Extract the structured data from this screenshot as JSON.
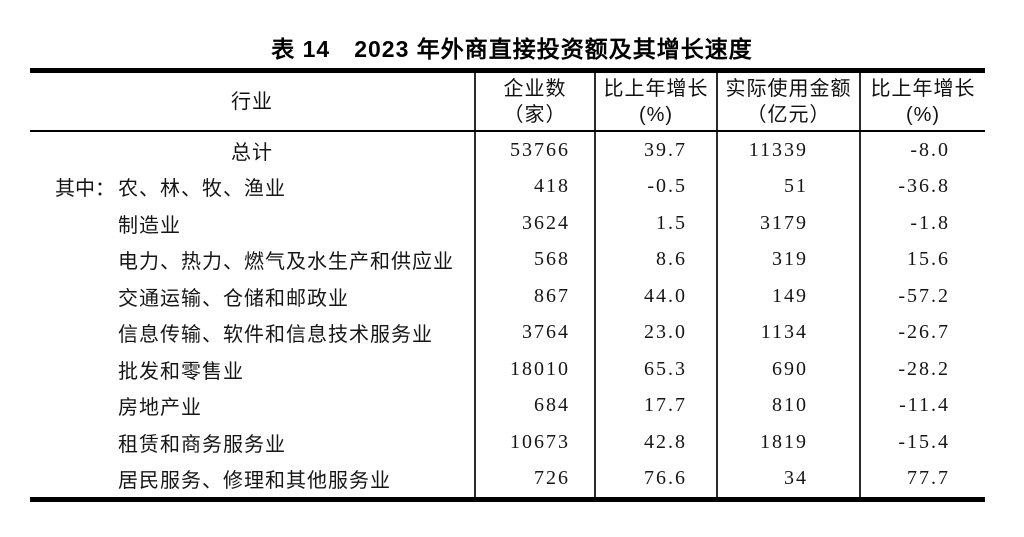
{
  "page": {
    "background": "#ffffff",
    "text_color": "#161616",
    "rule_color": "#000000"
  },
  "title": "表 14　2023 年外商直接投资额及其增长速度",
  "table": {
    "headers": [
      {
        "line1": "行业",
        "line2": ""
      },
      {
        "line1": "企业数",
        "line2": "（家）"
      },
      {
        "line1": "比上年增长",
        "line2": "(%)"
      },
      {
        "line1": "实际使用金额",
        "line2": "（亿元）"
      },
      {
        "line1": "比上年增长",
        "line2": "(%)"
      }
    ],
    "rows": [
      {
        "prefix": "",
        "industry": "总计",
        "enterprises": "53766",
        "enterprises_growth": "39.7",
        "amount": "11339",
        "amount_growth": "-8.0"
      },
      {
        "prefix": "其中：",
        "industry": "农、林、牧、渔业",
        "enterprises": "418",
        "enterprises_growth": "-0.5",
        "amount": "51",
        "amount_growth": "-36.8"
      },
      {
        "prefix": "",
        "industry": "制造业",
        "enterprises": "3624",
        "enterprises_growth": "1.5",
        "amount": "3179",
        "amount_growth": "-1.8"
      },
      {
        "prefix": "",
        "industry": "电力、热力、燃气及水生产和供应业",
        "enterprises": "568",
        "enterprises_growth": "8.6",
        "amount": "319",
        "amount_growth": "15.6"
      },
      {
        "prefix": "",
        "industry": "交通运输、仓储和邮政业",
        "enterprises": "867",
        "enterprises_growth": "44.0",
        "amount": "149",
        "amount_growth": "-57.2"
      },
      {
        "prefix": "",
        "industry": "信息传输、软件和信息技术服务业",
        "enterprises": "3764",
        "enterprises_growth": "23.0",
        "amount": "1134",
        "amount_growth": "-26.7"
      },
      {
        "prefix": "",
        "industry": "批发和零售业",
        "enterprises": "18010",
        "enterprises_growth": "65.3",
        "amount": "690",
        "amount_growth": "-28.2"
      },
      {
        "prefix": "",
        "industry": "房地产业",
        "enterprises": "684",
        "enterprises_growth": "17.7",
        "amount": "810",
        "amount_growth": "-11.4"
      },
      {
        "prefix": "",
        "industry": "租赁和商务服务业",
        "enterprises": "10673",
        "enterprises_growth": "42.8",
        "amount": "1819",
        "amount_growth": "-15.4"
      },
      {
        "prefix": "",
        "industry": "居民服务、修理和其他服务业",
        "enterprises": "726",
        "enterprises_growth": "76.6",
        "amount": "34",
        "amount_growth": "77.7"
      }
    ]
  }
}
